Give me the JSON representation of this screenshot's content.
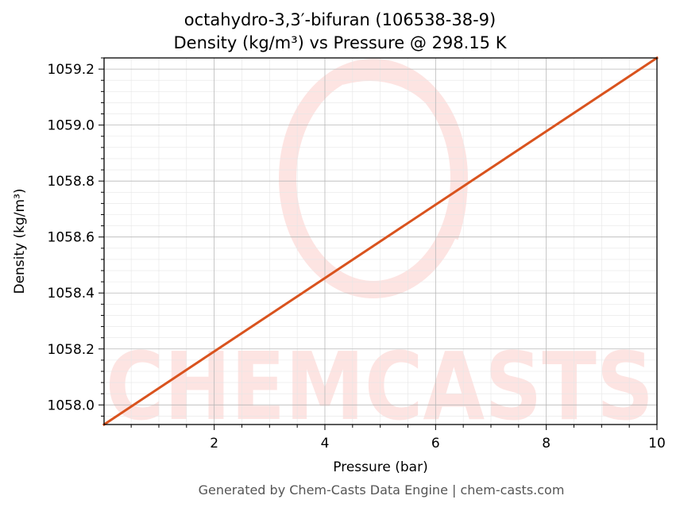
{
  "chart_data": {
    "type": "line",
    "title_line1": "octahydro-3,3′-bifuran (106538-38-9)",
    "title_line2": "Density (kg/m³) vs Pressure @ 298.15 K",
    "xlabel": "Pressure (bar)",
    "ylabel": "Density (kg/m³)",
    "xlim": [
      0.01,
      10
    ],
    "ylim": [
      1057.93,
      1059.24
    ],
    "x_ticks": [
      2,
      4,
      6,
      8,
      10
    ],
    "y_ticks": [
      1058.0,
      1058.2,
      1058.4,
      1058.6,
      1058.8,
      1059.0,
      1059.2
    ],
    "x_tick_labels": [
      "2",
      "4",
      "6",
      "8",
      "10"
    ],
    "y_tick_labels": [
      "1058.0",
      "1058.2",
      "1058.4",
      "1058.6",
      "1058.8",
      "1059.0",
      "1059.2"
    ],
    "grid": true,
    "series": [
      {
        "color": "#d9531e",
        "x": [
          0.01,
          10
        ],
        "y": [
          1057.93,
          1059.24
        ]
      }
    ]
  },
  "watermark": {
    "text": "CHEMCASTS",
    "color": "#fde4e2"
  },
  "footer": "Generated by Chem-Casts Data Engine | chem-casts.com"
}
